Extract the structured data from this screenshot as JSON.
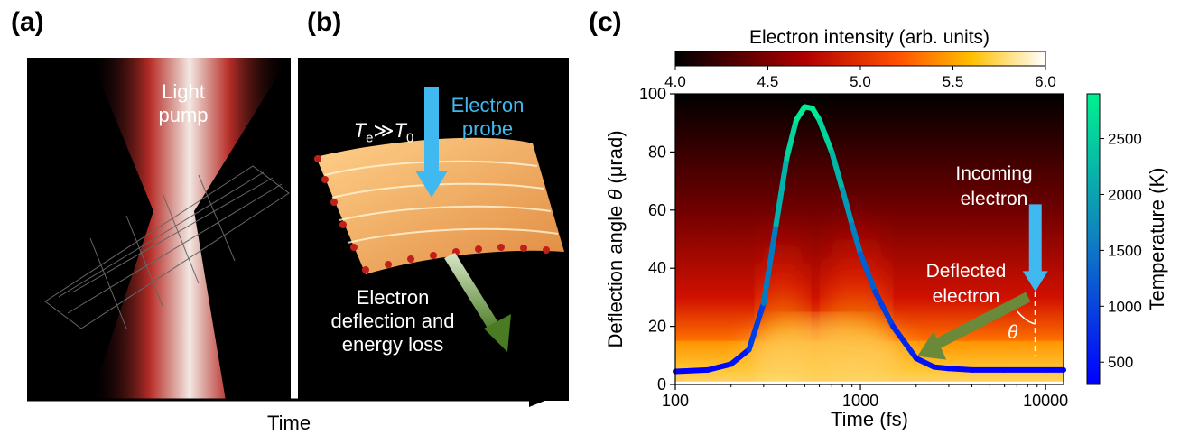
{
  "panels": {
    "a": "(a)",
    "b": "(b)",
    "c": "(c)"
  },
  "illustration_a": {
    "pump_label_line1": "Light",
    "pump_label_line2": "pump"
  },
  "illustration_b": {
    "temp_relation": "T",
    "temp_sub_e": "e",
    "temp_symbol": "≫",
    "temp_t0": "T",
    "temp_sub_0": "0",
    "probe_line1": "Electron",
    "probe_line2": "probe",
    "deflection_line1": "Electron",
    "deflection_line2": "deflection and",
    "deflection_line3": "energy loss"
  },
  "time_axis": {
    "label": "Time"
  },
  "chart_data": {
    "type": "heatmap",
    "xlabel": "Time (fs)",
    "ylabel_prefix": "Deflection angle ",
    "ylabel_symbol": "θ",
    "ylabel_suffix": " (μrad)",
    "x_scale": "log",
    "xlim": [
      100,
      12500
    ],
    "ylim": [
      0,
      100
    ],
    "xticks": [
      100,
      1000,
      10000
    ],
    "xtick_labels": [
      "100",
      "1000",
      "10000"
    ],
    "yticks": [
      0,
      20,
      40,
      60,
      80,
      100
    ],
    "ytick_labels": [
      "0",
      "20",
      "40",
      "60",
      "80",
      "100"
    ],
    "colorbar_top": {
      "label": "Electron intensity (arb. units)",
      "range": [
        4.0,
        6.0
      ],
      "ticks": [
        "4.0",
        "4.5",
        "5.0",
        "5.5",
        "6.0"
      ],
      "colormap": "hot",
      "placement": "top"
    },
    "colorbar_right": {
      "label": "Temperature (K)",
      "range": [
        300,
        2900
      ],
      "ticks": [
        500,
        1000,
        1500,
        2000,
        2500
      ],
      "tick_labels": [
        "500",
        "1000",
        "1500",
        "2000",
        "2500"
      ],
      "colormap": "blue-to-green",
      "placement": "right"
    },
    "temperature_curve": {
      "x": [
        100,
        150,
        200,
        250,
        300,
        350,
        400,
        450,
        500,
        550,
        600,
        700,
        800,
        900,
        1000,
        1200,
        1500,
        2000,
        2500,
        3000,
        4000,
        6000,
        10000,
        12500
      ],
      "y": [
        4.5,
        5,
        7,
        12,
        28,
        55,
        78,
        91,
        95.5,
        95,
        91,
        80,
        67,
        55,
        45,
        32,
        20,
        9,
        6,
        5.5,
        5,
        5,
        5,
        5
      ],
      "temperature": [
        300,
        330,
        420,
        650,
        1200,
        1900,
        2450,
        2750,
        2900,
        2880,
        2750,
        2400,
        2050,
        1750,
        1450,
        1100,
        800,
        550,
        420,
        370,
        330,
        320,
        310,
        300
      ]
    },
    "annotations": {
      "incoming_line1": "Incoming",
      "incoming_line2": "electron",
      "deflected_line1": "Deflected",
      "deflected_line2": "electron",
      "theta": "θ"
    },
    "colors": {
      "probe_blue": "#3fb9f0",
      "deflect_green": "#6a8a3a"
    }
  }
}
